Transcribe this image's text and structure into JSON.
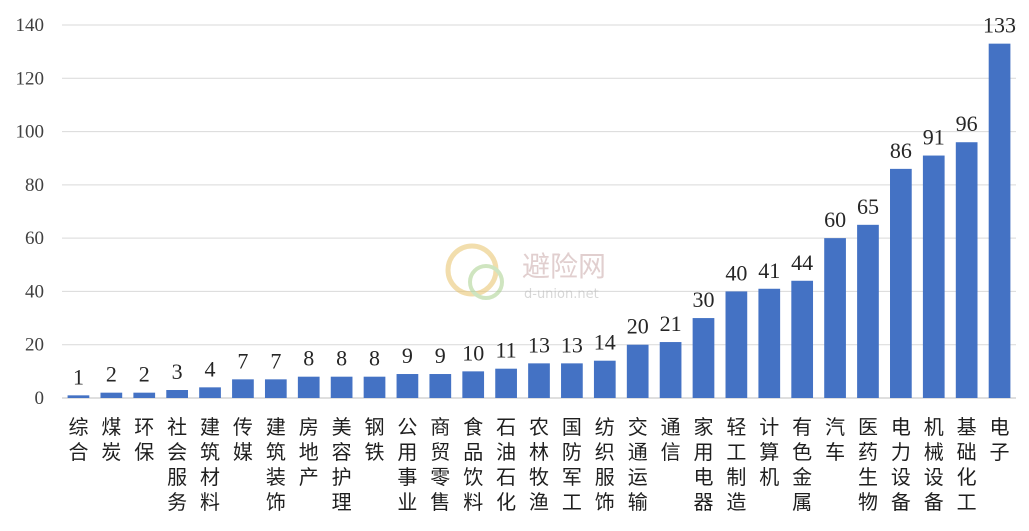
{
  "chart_data": {
    "type": "bar",
    "categories": [
      "综合",
      "煤炭",
      "环保",
      "社会服务",
      "建筑材料",
      "传媒",
      "建筑装饰",
      "房地产",
      "美容护理",
      "钢铁",
      "公用事业",
      "商贸零售",
      "食品饮料",
      "石油石化",
      "农林牧渔",
      "国防军工",
      "纺织服饰",
      "交通运输",
      "通信",
      "家用电器",
      "轻工制造",
      "计算机",
      "有色金属",
      "汽车",
      "医药生物",
      "电力设备",
      "机械设备",
      "基础化工",
      "电子"
    ],
    "values": [
      1,
      2,
      2,
      3,
      4,
      7,
      7,
      8,
      8,
      8,
      9,
      9,
      10,
      11,
      13,
      13,
      14,
      20,
      21,
      30,
      40,
      41,
      44,
      60,
      65,
      86,
      91,
      96,
      133
    ],
    "ylim": [
      0,
      140
    ],
    "yticks": [
      0,
      20,
      40,
      60,
      80,
      100,
      120,
      140
    ],
    "grid": true,
    "bar_color": "#4472C4",
    "grid_color": "#D9D9D9",
    "title": "",
    "xlabel": "",
    "ylabel": ""
  },
  "watermark": {
    "text": "避险网",
    "subtext": "d-union.net"
  }
}
